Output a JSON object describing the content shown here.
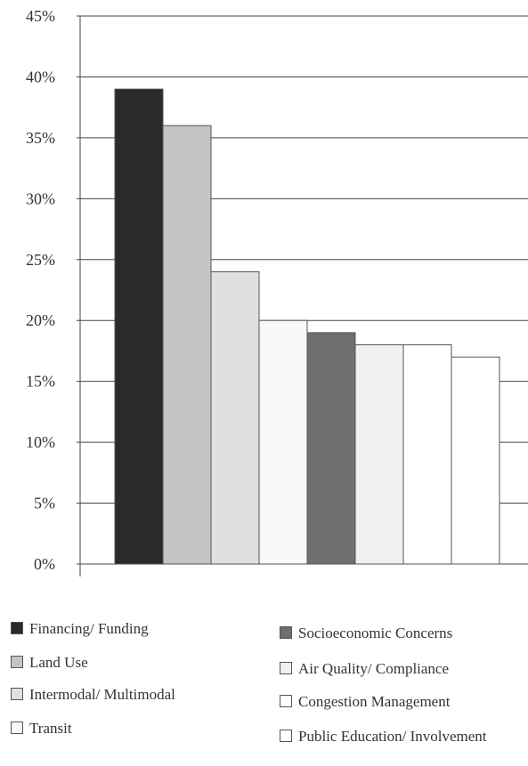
{
  "chart_data": {
    "type": "bar",
    "y_ticks": [
      "0%",
      "5%",
      "10%",
      "15%",
      "20%",
      "25%",
      "30%",
      "35%",
      "40%",
      "45%"
    ],
    "ylim": [
      0,
      45
    ],
    "grid": true,
    "legend_placement": "bottom",
    "series": [
      {
        "name": "Financing/ Funding",
        "value": 39,
        "color": "#2a2a2a"
      },
      {
        "name": "Land Use",
        "value": 36,
        "color": "#c4c4c4"
      },
      {
        "name": "Intermodal/ Multimodal",
        "value": 24,
        "color": "#e0e0e0"
      },
      {
        "name": "Transit",
        "value": 20,
        "color": "#f8f8f8"
      },
      {
        "name": "Socioeconomic Concerns",
        "value": 19,
        "color": "#6f6f6f"
      },
      {
        "name": "Air Quality/ Compliance",
        "value": 18,
        "color": "#f0f0f0"
      },
      {
        "name": "Congestion Management",
        "value": 18,
        "color": "#ffffff"
      },
      {
        "name": "Public Education/ Involvement",
        "value": 17,
        "color": "#ffffff"
      }
    ]
  }
}
